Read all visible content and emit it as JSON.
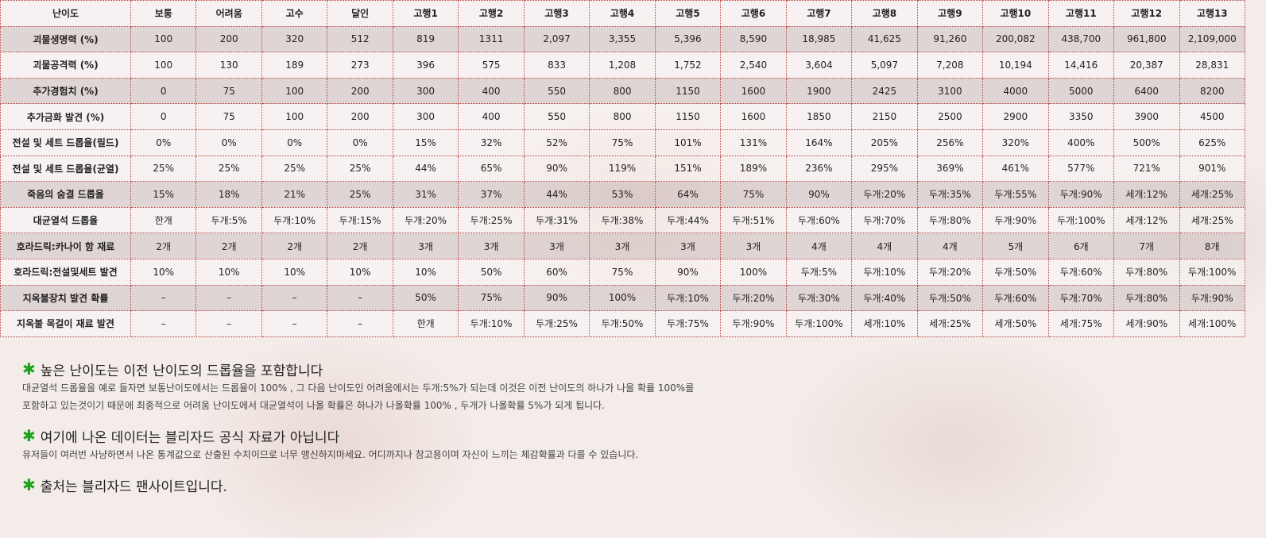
{
  "table": {
    "headers": [
      "난이도",
      "보통",
      "어려움",
      "고수",
      "달인",
      "고행1",
      "고행2",
      "고행3",
      "고행4",
      "고행5",
      "고행6",
      "고행7",
      "고행8",
      "고행9",
      "고행10",
      "고행11",
      "고행12",
      "고행13"
    ],
    "rows": [
      {
        "shade": "dark",
        "cells": [
          "괴물생명력 (%)",
          "100",
          "200",
          "320",
          "512",
          "819",
          "1311",
          "2,097",
          "3,355",
          "5,396",
          "8,590",
          "18,985",
          "41,625",
          "91,260",
          "200,082",
          "438,700",
          "961,800",
          "2,109,000"
        ]
      },
      {
        "shade": "light",
        "cells": [
          "괴물공격력 (%)",
          "100",
          "130",
          "189",
          "273",
          "396",
          "575",
          "833",
          "1,208",
          "1,752",
          "2,540",
          "3,604",
          "5,097",
          "7,208",
          "10,194",
          "14,416",
          "20,387",
          "28,831"
        ]
      },
      {
        "shade": "dark",
        "cells": [
          "추가경험치 (%)",
          "0",
          "75",
          "100",
          "200",
          "300",
          "400",
          "550",
          "800",
          "1150",
          "1600",
          "1900",
          "2425",
          "3100",
          "4000",
          "5000",
          "6400",
          "8200"
        ]
      },
      {
        "shade": "light",
        "cells": [
          "추가금화 발견 (%)",
          "0",
          "75",
          "100",
          "200",
          "300",
          "400",
          "550",
          "800",
          "1150",
          "1600",
          "1850",
          "2150",
          "2500",
          "2900",
          "3350",
          "3900",
          "4500"
        ]
      },
      {
        "shade": "light",
        "cells": [
          "전설 및 세트 드롭율(필드)",
          "0%",
          "0%",
          "0%",
          "0%",
          "15%",
          "32%",
          "52%",
          "75%",
          "101%",
          "131%",
          "164%",
          "205%",
          "256%",
          "320%",
          "400%",
          "500%",
          "625%"
        ]
      },
      {
        "shade": "light",
        "cells": [
          "전설 및 세트 드롭율(균열)",
          "25%",
          "25%",
          "25%",
          "25%",
          "44%",
          "65%",
          "90%",
          "119%",
          "151%",
          "189%",
          "236%",
          "295%",
          "369%",
          "461%",
          "577%",
          "721%",
          "901%"
        ]
      },
      {
        "shade": "dark",
        "cells": [
          "죽음의 숨결 드롭율",
          "15%",
          "18%",
          "21%",
          "25%",
          "31%",
          "37%",
          "44%",
          "53%",
          "64%",
          "75%",
          "90%",
          "두개:20%",
          "두개:35%",
          "두개:55%",
          "두개:90%",
          "세개:12%",
          "세개:25%"
        ]
      },
      {
        "shade": "light",
        "cells": [
          "대균열석 드롭율",
          "한개",
          "두개:5%",
          "두개:10%",
          "두개:15%",
          "두개:20%",
          "두개:25%",
          "두개:31%",
          "두개:38%",
          "두개:44%",
          "두개:51%",
          "두개:60%",
          "두개:70%",
          "두개:80%",
          "두개:90%",
          "두개:100%",
          "세개:12%",
          "세개:25%"
        ]
      },
      {
        "shade": "dark",
        "cells": [
          "호라드릭:카나이 함 재료",
          "2개",
          "2개",
          "2개",
          "2개",
          "3개",
          "3개",
          "3개",
          "3개",
          "3개",
          "3개",
          "4개",
          "4개",
          "4개",
          "5개",
          "6개",
          "7개",
          "8개"
        ]
      },
      {
        "shade": "light",
        "cells": [
          "호라드릭:전설및세트 발견",
          "10%",
          "10%",
          "10%",
          "10%",
          "10%",
          "50%",
          "60%",
          "75%",
          "90%",
          "100%",
          "두개:5%",
          "두개:10%",
          "두개:20%",
          "두개:50%",
          "두개:60%",
          "두개:80%",
          "두개:100%"
        ]
      },
      {
        "shade": "dark",
        "cells": [
          "지옥불장치 발견 확률",
          "–",
          "–",
          "–",
          "–",
          "50%",
          "75%",
          "90%",
          "100%",
          "두개:10%",
          "두개:20%",
          "두개:30%",
          "두개:40%",
          "두개:50%",
          "두개:60%",
          "두개:70%",
          "두개:80%",
          "두개:90%"
        ]
      },
      {
        "shade": "light",
        "cells": [
          "지옥불 목걸이 재료 발견",
          "–",
          "–",
          "–",
          "–",
          "한개",
          "두개:10%",
          "두개:25%",
          "두개:50%",
          "두개:75%",
          "두개:90%",
          "두개:100%",
          "세개:10%",
          "세개:25%",
          "세개:50%",
          "세개:75%",
          "세개:90%",
          "세개:100%"
        ]
      }
    ]
  },
  "notes": [
    {
      "icon": "asterisk-icon",
      "title": "높은 난이도는 이전 난이도의 드롭율을 포함합니다",
      "lines": [
        "대균열석 드롭율을 예로 들자면 보통난이도에서는 드롭율이 100% , 그 다음 난이도인 어려움에서는 두개:5%가 되는데 이것은 이전 난이도의 하나가 나올 확률 100%를",
        "포함하고 있는것이기 때문에 최종적으로 어려움 난이도에서 대균열석이 나올 확률은 하나가 나올확률 100% , 두개가 나올확률 5%가 되게 됩니다."
      ]
    },
    {
      "icon": "asterisk-icon",
      "title": "여기에 나온 데이터는 블리자드 공식 자료가 아닙니다",
      "lines": [
        "유저들이 여러번 사냥하면서 나온 통계값으로 산출된 수치이므로 너무 맹신하지마세요. 어디까지나 참고용이며 자신이 느끼는 체감확률과 다를 수 있습니다."
      ]
    },
    {
      "icon": "asterisk-icon",
      "title": "출처는 블리자드 팬사이트입니다.",
      "lines": []
    }
  ],
  "colors": {
    "accent_star": "#19a319",
    "grid_border": "#b84444"
  }
}
